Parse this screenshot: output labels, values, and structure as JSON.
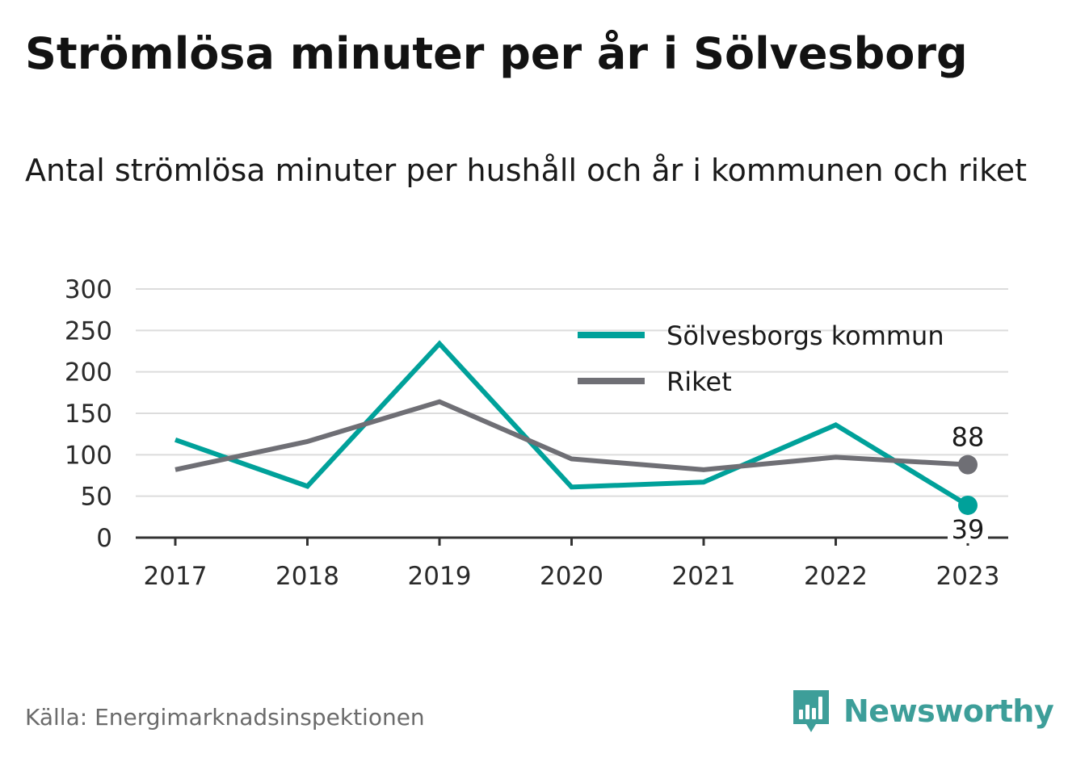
{
  "header": {
    "title": "Strömlösa minuter per år i Sölvesborg",
    "subtitle": "Antal strömlösa minuter per hushåll och år i kommunen och riket"
  },
  "footer": {
    "source": "Källa: Energimarknadsinspektionen",
    "brand": "Newsworthy",
    "brand_icon": "bar-chart-speech-bubble-icon",
    "brand_color": "#3d9e99"
  },
  "chart_data": {
    "type": "line",
    "x": [
      "2017",
      "2018",
      "2019",
      "2020",
      "2021",
      "2022",
      "2023"
    ],
    "yticks": [
      0,
      50,
      100,
      150,
      200,
      250,
      300
    ],
    "ylim": [
      0,
      300
    ],
    "grid": true,
    "legend_position": "top-right",
    "series": [
      {
        "name": "Sölvesborgs kommun",
        "color": "#00a19a",
        "values": [
          118,
          62,
          234,
          61,
          67,
          136,
          39
        ],
        "end_label": "39"
      },
      {
        "name": "Riket",
        "color": "#6f6f75",
        "values": [
          82,
          116,
          164,
          95,
          82,
          97,
          88
        ],
        "end_label": "88"
      }
    ]
  }
}
